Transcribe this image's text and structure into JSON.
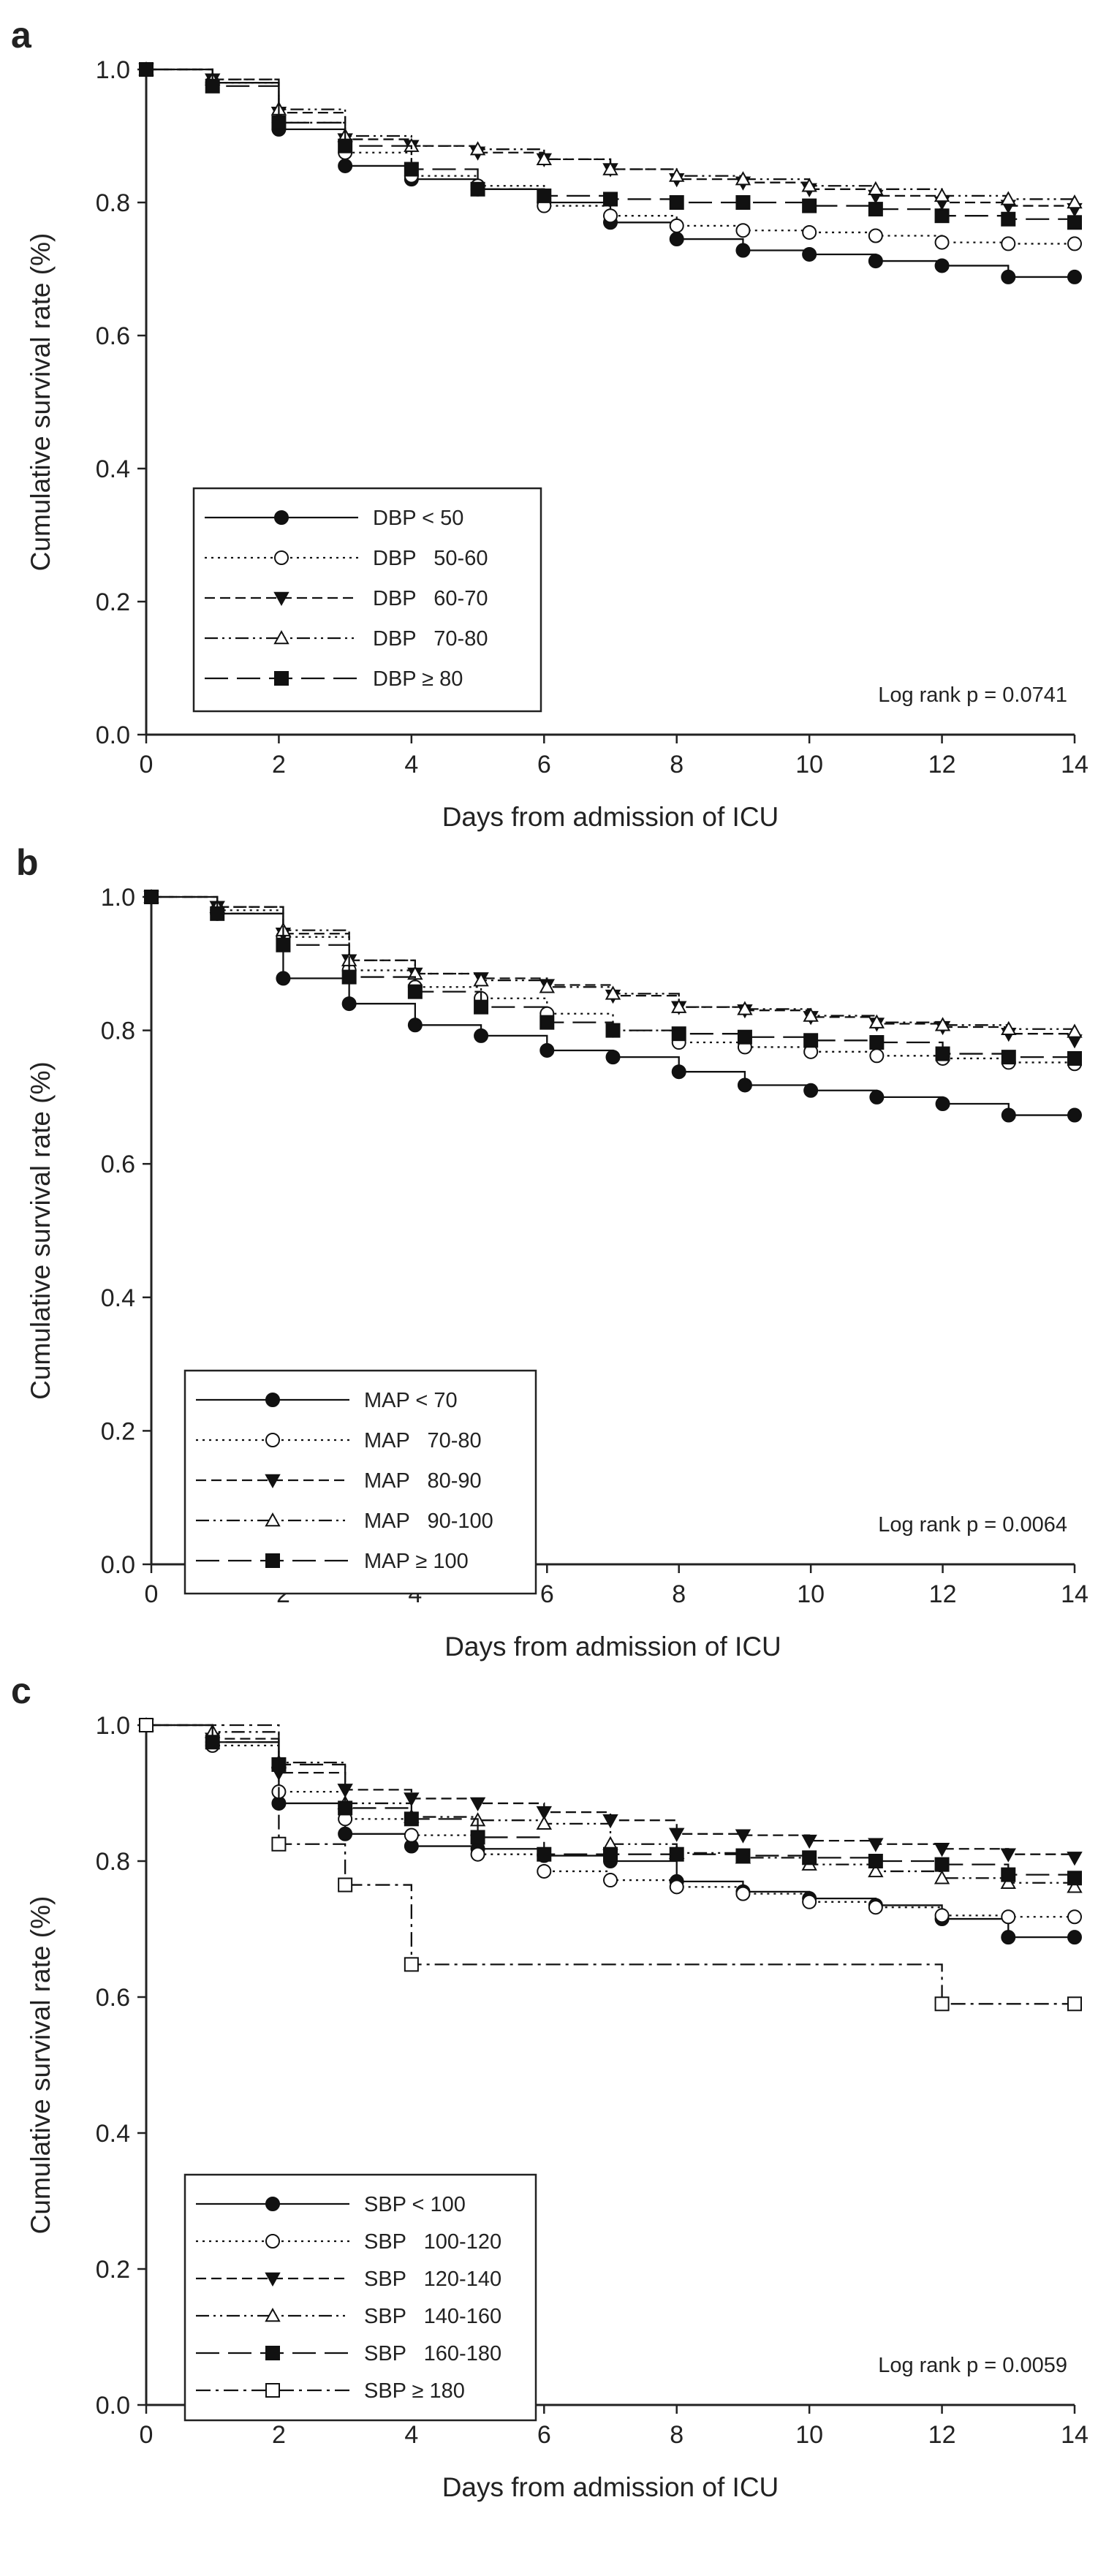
{
  "chart_data": [
    {
      "type": "line",
      "panel_label": "a",
      "xlabel": "Days from admission of ICU",
      "ylabel": "Cumulative survival rate (%)",
      "xlim": [
        0,
        14
      ],
      "ylim": [
        0.0,
        1.0
      ],
      "xticks": [
        "0",
        "2",
        "4",
        "6",
        "8",
        "10",
        "12",
        "14"
      ],
      "yticks": [
        "0.0",
        "0.2",
        "0.4",
        "0.6",
        "0.8",
        "1.0"
      ],
      "annotation": "Log rank p = 0.0741",
      "legend_position": "bottom-left",
      "step": true,
      "series": [
        {
          "name": "DBP < 50",
          "marker": "circle-filled",
          "dash": "solid",
          "x": [
            0,
            1,
            2,
            3,
            4,
            5,
            6,
            7,
            8,
            9,
            10,
            11,
            12,
            13,
            14
          ],
          "y": [
            1.0,
            0.98,
            0.91,
            0.855,
            0.835,
            0.82,
            0.8,
            0.77,
            0.745,
            0.728,
            0.722,
            0.712,
            0.705,
            0.688,
            0.688
          ]
        },
        {
          "name": "DBP   50-60",
          "marker": "circle-open",
          "dash": "dotted",
          "x": [
            0,
            1,
            2,
            3,
            4,
            5,
            6,
            7,
            8,
            9,
            10,
            11,
            12,
            13,
            14
          ],
          "y": [
            1.0,
            0.98,
            0.92,
            0.875,
            0.84,
            0.825,
            0.795,
            0.78,
            0.765,
            0.758,
            0.755,
            0.75,
            0.74,
            0.738,
            0.738
          ]
        },
        {
          "name": "DBP   60-70",
          "marker": "triangle-down-filled",
          "dash": "short-dash",
          "x": [
            0,
            1,
            2,
            3,
            4,
            5,
            6,
            7,
            8,
            9,
            10,
            11,
            12,
            13,
            14
          ],
          "y": [
            1.0,
            0.985,
            0.935,
            0.895,
            0.885,
            0.875,
            0.865,
            0.85,
            0.835,
            0.83,
            0.82,
            0.81,
            0.8,
            0.795,
            0.79
          ]
        },
        {
          "name": "DBP   70-80",
          "marker": "triangle-up-open",
          "dash": "dash-dot-dot",
          "x": [
            0,
            1,
            2,
            3,
            4,
            5,
            6,
            7,
            8,
            9,
            10,
            11,
            12,
            13,
            14
          ],
          "y": [
            1.0,
            0.985,
            0.94,
            0.9,
            0.885,
            0.88,
            0.865,
            0.85,
            0.84,
            0.835,
            0.825,
            0.82,
            0.81,
            0.805,
            0.8
          ]
        },
        {
          "name": "DBP ≥ 80",
          "marker": "square-filled",
          "dash": "long-dash",
          "x": [
            0,
            1,
            2,
            3,
            4,
            5,
            6,
            7,
            8,
            9,
            10,
            11,
            12,
            13,
            14
          ],
          "y": [
            1.0,
            0.975,
            0.92,
            0.885,
            0.85,
            0.82,
            0.81,
            0.805,
            0.8,
            0.8,
            0.795,
            0.79,
            0.78,
            0.775,
            0.77
          ]
        }
      ]
    },
    {
      "type": "line",
      "panel_label": "b",
      "xlabel": "Days from admission of ICU",
      "ylabel": "Cumulative survival rate (%)",
      "xlim": [
        0,
        14
      ],
      "ylim": [
        0.0,
        1.0
      ],
      "xticks": [
        "0",
        "2",
        "4",
        "6",
        "8",
        "10",
        "12",
        "14"
      ],
      "yticks": [
        "0.0",
        "0.2",
        "0.4",
        "0.6",
        "0.8",
        "1.0"
      ],
      "annotation": "Log rank p = 0.0064",
      "legend_position": "bottom-left",
      "step": true,
      "series": [
        {
          "name": "MAP < 70",
          "marker": "circle-filled",
          "dash": "solid",
          "x": [
            0,
            1,
            2,
            3,
            4,
            5,
            6,
            7,
            8,
            9,
            10,
            11,
            12,
            13,
            14
          ],
          "y": [
            1.0,
            0.975,
            0.878,
            0.84,
            0.808,
            0.792,
            0.77,
            0.76,
            0.738,
            0.718,
            0.71,
            0.7,
            0.69,
            0.673,
            0.673
          ]
        },
        {
          "name": "MAP   70-80",
          "marker": "circle-open",
          "dash": "dotted",
          "x": [
            0,
            1,
            2,
            3,
            4,
            5,
            6,
            7,
            8,
            9,
            10,
            11,
            12,
            13,
            14
          ],
          "y": [
            1.0,
            0.98,
            0.94,
            0.89,
            0.865,
            0.848,
            0.825,
            0.8,
            0.782,
            0.775,
            0.768,
            0.762,
            0.758,
            0.752,
            0.75
          ]
        },
        {
          "name": "MAP   80-90",
          "marker": "triangle-down-filled",
          "dash": "short-dash",
          "x": [
            0,
            1,
            2,
            3,
            4,
            5,
            6,
            7,
            8,
            9,
            10,
            11,
            12,
            13,
            14
          ],
          "y": [
            1.0,
            0.985,
            0.945,
            0.905,
            0.885,
            0.878,
            0.868,
            0.852,
            0.835,
            0.83,
            0.82,
            0.81,
            0.805,
            0.795,
            0.785
          ]
        },
        {
          "name": "MAP   90-100",
          "marker": "triangle-up-open",
          "dash": "dash-dot-dot",
          "x": [
            0,
            1,
            2,
            3,
            4,
            5,
            6,
            7,
            8,
            9,
            10,
            11,
            12,
            13,
            14
          ],
          "y": [
            1.0,
            0.985,
            0.95,
            0.905,
            0.885,
            0.875,
            0.865,
            0.855,
            0.835,
            0.832,
            0.822,
            0.812,
            0.808,
            0.802,
            0.798
          ]
        },
        {
          "name": "MAP ≥ 100",
          "marker": "square-filled",
          "dash": "long-dash",
          "x": [
            0,
            1,
            2,
            3,
            4,
            5,
            6,
            7,
            8,
            9,
            10,
            11,
            12,
            13,
            14
          ],
          "y": [
            1.0,
            0.975,
            0.928,
            0.88,
            0.858,
            0.835,
            0.812,
            0.8,
            0.795,
            0.79,
            0.785,
            0.782,
            0.765,
            0.76,
            0.758
          ]
        }
      ]
    },
    {
      "type": "line",
      "panel_label": "c",
      "xlabel": "Days from admission of ICU",
      "ylabel": "Cumulative survival rate (%)",
      "xlim": [
        0,
        14
      ],
      "ylim": [
        0.0,
        1.0
      ],
      "xticks": [
        "0",
        "2",
        "4",
        "6",
        "8",
        "10",
        "12",
        "14"
      ],
      "yticks": [
        "0.0",
        "0.2",
        "0.4",
        "0.6",
        "0.8",
        "1.0"
      ],
      "annotation": "Log rank p = 0.0059",
      "legend_position": "bottom-left",
      "step": true,
      "series": [
        {
          "name": "SBP < 100",
          "marker": "circle-filled",
          "dash": "solid",
          "x": [
            0,
            1,
            2,
            3,
            4,
            5,
            6,
            7,
            8,
            9,
            10,
            11,
            12,
            13,
            14
          ],
          "y": [
            1.0,
            0.975,
            0.885,
            0.84,
            0.822,
            0.818,
            0.808,
            0.8,
            0.77,
            0.755,
            0.745,
            0.735,
            0.715,
            0.688,
            0.688
          ]
        },
        {
          "name": "SBP   100-120",
          "marker": "circle-open",
          "dash": "dotted",
          "x": [
            0,
            1,
            2,
            3,
            4,
            5,
            6,
            7,
            8,
            9,
            10,
            11,
            12,
            13,
            14
          ],
          "y": [
            1.0,
            0.97,
            0.902,
            0.862,
            0.838,
            0.81,
            0.785,
            0.772,
            0.762,
            0.752,
            0.74,
            0.732,
            0.72,
            0.718,
            0.718
          ]
        },
        {
          "name": "SBP   120-140",
          "marker": "triangle-down-filled",
          "dash": "short-dash",
          "x": [
            0,
            1,
            2,
            3,
            4,
            5,
            6,
            7,
            8,
            9,
            10,
            11,
            12,
            13,
            14
          ],
          "y": [
            1.0,
            0.98,
            0.93,
            0.905,
            0.892,
            0.885,
            0.872,
            0.86,
            0.84,
            0.838,
            0.83,
            0.825,
            0.818,
            0.81,
            0.805
          ]
        },
        {
          "name": "SBP   140-160",
          "marker": "triangle-up-open",
          "dash": "dash-dot-dot",
          "x": [
            0,
            1,
            2,
            3,
            4,
            5,
            6,
            7,
            8,
            9,
            10,
            11,
            12,
            13,
            14
          ],
          "y": [
            1.0,
            0.99,
            0.945,
            0.885,
            0.865,
            0.86,
            0.855,
            0.825,
            0.812,
            0.805,
            0.795,
            0.785,
            0.775,
            0.768,
            0.762
          ]
        },
        {
          "name": "SBP   160-180",
          "marker": "square-filled",
          "dash": "long-dash",
          "x": [
            0,
            1,
            2,
            3,
            4,
            5,
            6,
            7,
            8,
            9,
            10,
            11,
            12,
            13,
            14
          ],
          "y": [
            1.0,
            0.975,
            0.942,
            0.878,
            0.862,
            0.835,
            0.81,
            0.81,
            0.81,
            0.808,
            0.805,
            0.8,
            0.795,
            0.78,
            0.775
          ]
        },
        {
          "name": "SBP ≥ 180",
          "marker": "square-open",
          "dash": "dash-dot",
          "x": [
            0,
            2,
            3,
            4,
            12,
            14
          ],
          "y": [
            1.0,
            0.825,
            0.765,
            0.648,
            0.59,
            0.59
          ]
        }
      ]
    }
  ]
}
